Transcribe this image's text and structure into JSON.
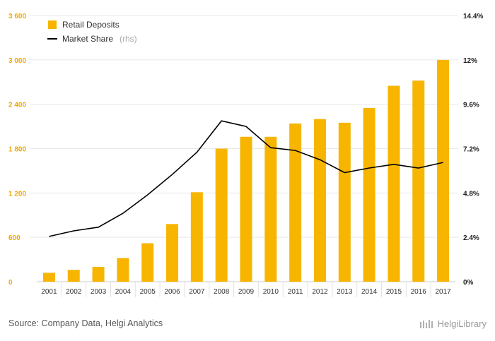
{
  "chart_data": {
    "type": "bar",
    "categories": [
      "2001",
      "2002",
      "2003",
      "2004",
      "2005",
      "2006",
      "2007",
      "2008",
      "2009",
      "2010",
      "2011",
      "2012",
      "2013",
      "2014",
      "2015",
      "2016",
      "2017"
    ],
    "series": [
      {
        "name": "Retail Deposits",
        "type": "bar",
        "axis": "left",
        "color": "#f7b500",
        "values": [
          120,
          160,
          200,
          320,
          520,
          780,
          1210,
          1800,
          1960,
          1960,
          2140,
          2200,
          2150,
          2350,
          2650,
          2720,
          3000
        ]
      },
      {
        "name": "Market Share",
        "type": "line",
        "axis": "right",
        "color": "#000000",
        "values": [
          2.45,
          2.75,
          2.95,
          3.7,
          4.7,
          5.8,
          7.0,
          8.7,
          8.4,
          7.25,
          7.1,
          6.6,
          5.9,
          6.15,
          6.35,
          6.15,
          6.45
        ]
      }
    ],
    "legend": {
      "placement": "top-left",
      "items": [
        "Retail Deposits",
        "Market Share"
      ],
      "suffix": "(rhs)"
    },
    "y_left": {
      "min": 0,
      "max": 3600,
      "ticks": [
        0,
        600,
        1200,
        1800,
        2400,
        3000,
        3600
      ],
      "tick_labels": [
        "0",
        "600",
        "1 200",
        "1 800",
        "2 400",
        "3 000",
        "3 600"
      ]
    },
    "y_right": {
      "min": 0,
      "max": 14.4,
      "ticks": [
        0,
        2.4,
        4.8,
        7.2,
        9.6,
        12,
        14.4
      ],
      "tick_labels": [
        "0%",
        "2.4%",
        "4.8%",
        "7.2%",
        "9.6%",
        "12%",
        "14.4%"
      ]
    },
    "grid": {
      "horizontal": true,
      "color": "#e8e8e8"
    }
  },
  "footer": {
    "source": "Source: Company Data, Helgi Analytics",
    "brand": "HelgiLibrary"
  }
}
